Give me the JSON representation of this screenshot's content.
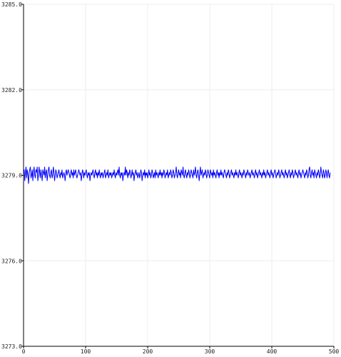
{
  "chart_data": {
    "type": "line",
    "x_start": 0,
    "x_step": 1,
    "xlim": [
      0,
      500
    ],
    "ylim": [
      3273.0,
      3285.0
    ],
    "x_ticks": [
      0,
      100,
      200,
      300,
      400,
      500
    ],
    "x_tick_labels": [
      "0",
      "100",
      "200",
      "300",
      "400",
      "500"
    ],
    "y_ticks": [
      3273.0,
      3276.0,
      3279.0,
      3282.0,
      3285.0
    ],
    "y_tick_labels": [
      "3273.0",
      "3276.0",
      "3279.0",
      "3282.0",
      "3285.0"
    ],
    "grid": true,
    "line_color": "#0000ff",
    "series": [
      {
        "values": [
          3279.1,
          3279.2,
          3278.8,
          3279.1,
          3279.3,
          3278.9,
          3279.2,
          3279.0,
          3278.7,
          3279.1,
          3279.2,
          3279.3,
          3278.9,
          3279.0,
          3279.2,
          3278.8,
          3279.1,
          3279.3,
          3279.0,
          3278.9,
          3279.2,
          3279.1,
          3279.3,
          3278.8,
          3279.0,
          3279.3,
          3279.1,
          3278.9,
          3279.2,
          3279.0,
          3278.8,
          3279.2,
          3279.1,
          3279.0,
          3279.3,
          3278.9,
          3279.1,
          3279.2,
          3278.8,
          3279.0,
          3279.2,
          3279.3,
          3279.0,
          3278.9,
          3279.1,
          3279.2,
          3278.9,
          3279.0,
          3279.3,
          3279.1,
          3278.8,
          3279.0,
          3279.2,
          3279.1,
          3278.9,
          3279.0,
          3279.1,
          3279.2,
          3279.0,
          3278.9,
          3279.1,
          3279.0,
          3279.2,
          3278.9,
          3279.0,
          3279.1,
          3279.0,
          3278.8,
          3279.1,
          3279.2,
          3279.0,
          3279.1,
          3279.2,
          3279.1,
          3279.0,
          3278.9,
          3279.1,
          3279.2,
          3279.0,
          3279.1,
          3278.9,
          3279.2,
          3279.0,
          3279.1,
          3279.2,
          3279.0,
          3278.9,
          3279.0,
          3279.1,
          3279.2,
          3279.1,
          3279.0,
          3279.1,
          3278.8,
          3279.0,
          3279.2,
          3279.1,
          3278.9,
          3279.1,
          3279.0,
          3279.1,
          3279.2,
          3279.0,
          3278.9,
          3279.1,
          3279.0,
          3279.1,
          3278.8,
          3279.0,
          3279.1,
          3279.0,
          3279.1,
          3279.2,
          3279.0,
          3278.9,
          3279.1,
          3279.2,
          3279.0,
          3279.1,
          3278.9,
          3279.1,
          3279.0,
          3279.2,
          3279.0,
          3278.9,
          3279.1,
          3279.0,
          3279.1,
          3278.9,
          3279.0,
          3279.1,
          3279.2,
          3278.9,
          3279.0,
          3279.1,
          3279.0,
          3279.2,
          3278.9,
          3279.0,
          3279.1,
          3279.0,
          3279.1,
          3278.9,
          3279.0,
          3279.1,
          3279.0,
          3279.2,
          3279.0,
          3278.9,
          3279.1,
          3279.0,
          3279.1,
          3279.2,
          3279.0,
          3279.3,
          3279.0,
          3278.9,
          3279.1,
          3279.0,
          3279.1,
          3278.8,
          3279.0,
          3279.1,
          3279.0,
          3279.3,
          3279.0,
          3279.2,
          3279.1,
          3278.9,
          3279.1,
          3279.0,
          3279.2,
          3279.1,
          3278.9,
          3279.0,
          3279.2,
          3279.0,
          3279.1,
          3278.8,
          3279.0,
          3279.1,
          3279.2,
          3279.0,
          3279.1,
          3278.9,
          3279.0,
          3279.1,
          3278.9,
          3279.0,
          3279.2,
          3279.1,
          3278.8,
          3279.0,
          3279.1,
          3279.0,
          3279.2,
          3278.9,
          3279.1,
          3279.0,
          3279.1,
          3278.9,
          3279.0,
          3279.2,
          3279.0,
          3279.1,
          3278.9,
          3279.0,
          3279.2,
          3279.1,
          3278.9,
          3279.0,
          3279.1,
          3278.9,
          3279.2,
          3279.0,
          3279.1,
          3279.0,
          3278.9,
          3279.1,
          3279.0,
          3279.2,
          3279.0,
          3279.1,
          3278.9,
          3279.1,
          3279.0,
          3279.2,
          3279.1,
          3278.9,
          3279.0,
          3279.1,
          3279.0,
          3279.2,
          3278.9,
          3279.0,
          3279.1,
          3279.0,
          3279.2,
          3279.1,
          3278.9,
          3279.0,
          3279.2,
          3279.1,
          3278.9,
          3279.0,
          3279.1,
          3279.3,
          3279.0,
          3278.9,
          3279.1,
          3279.2,
          3279.0,
          3279.1,
          3278.9,
          3279.2,
          3279.1,
          3279.0,
          3279.3,
          3279.0,
          3278.9,
          3279.1,
          3279.2,
          3279.0,
          3278.9,
          3279.1,
          3279.0,
          3279.2,
          3279.1,
          3278.9,
          3279.0,
          3279.2,
          3279.1,
          3279.0,
          3278.9,
          3279.2,
          3279.0,
          3279.1,
          3279.3,
          3279.0,
          3278.9,
          3279.1,
          3279.2,
          3279.0,
          3278.8,
          3279.1,
          3279.3,
          3279.0,
          3279.1,
          3279.2,
          3278.9,
          3279.0,
          3279.1,
          3279.0,
          3279.2,
          3279.1,
          3278.9,
          3279.0,
          3279.2,
          3279.1,
          3279.0,
          3278.9,
          3279.2,
          3279.1,
          3279.0,
          3279.1,
          3278.9,
          3279.2,
          3279.0,
          3279.1,
          3279.0,
          3278.9,
          3279.1,
          3279.2,
          3279.0,
          3279.1,
          3278.9,
          3279.1,
          3279.0,
          3279.2,
          3279.0,
          3279.1,
          3279.0,
          3278.9,
          3279.1,
          3279.2,
          3279.1,
          3279.0,
          3278.9,
          3279.1,
          3279.0,
          3279.2,
          3279.1,
          3278.9,
          3279.0,
          3279.1,
          3279.2,
          3279.0,
          3279.1,
          3279.0,
          3278.9,
          3279.1,
          3279.0,
          3279.2,
          3279.0,
          3279.1,
          3279.0,
          3278.9,
          3279.1,
          3279.2,
          3279.0,
          3279.1,
          3279.0,
          3278.9,
          3279.1,
          3279.0,
          3279.2,
          3279.1,
          3279.0,
          3278.9,
          3279.1,
          3279.0,
          3279.2,
          3279.1,
          3279.0,
          3279.1,
          3278.9,
          3279.0,
          3279.1,
          3279.2,
          3279.0,
          3279.1,
          3279.0,
          3278.9,
          3279.1,
          3279.2,
          3279.0,
          3279.1,
          3278.9,
          3279.0,
          3279.1,
          3279.2,
          3279.0,
          3279.1,
          3279.0,
          3278.9,
          3279.1,
          3279.0,
          3279.2,
          3279.0,
          3279.1,
          3278.9,
          3279.0,
          3279.1,
          3279.2,
          3279.0,
          3279.1,
          3279.0,
          3278.9,
          3279.1,
          3279.2,
          3279.0,
          3279.1,
          3278.9,
          3279.0,
          3279.1,
          3279.2,
          3279.1,
          3278.9,
          3279.0,
          3279.1,
          3279.0,
          3279.2,
          3279.1,
          3278.9,
          3279.0,
          3279.1,
          3279.2,
          3279.0,
          3279.1,
          3279.0,
          3278.9,
          3279.1,
          3279.2,
          3279.0,
          3279.1,
          3278.9,
          3279.0,
          3279.1,
          3279.2,
          3279.0,
          3278.9,
          3279.1,
          3279.0,
          3279.2,
          3279.1,
          3278.9,
          3279.0,
          3279.1,
          3279.2,
          3279.0,
          3279.1,
          3279.0,
          3278.9,
          3279.1,
          3279.2,
          3279.0,
          3279.1,
          3278.9,
          3279.0,
          3279.1,
          3279.2,
          3279.1,
          3279.0,
          3278.9,
          3279.1,
          3279.0,
          3279.2,
          3279.1,
          3278.9,
          3279.0,
          3279.2,
          3279.3,
          3279.0,
          3278.9,
          3279.1,
          3279.2,
          3279.0,
          3279.1,
          3278.9,
          3279.2,
          3279.1,
          3279.0,
          3278.9,
          3279.1,
          3279.0,
          3279.2,
          3279.1,
          3278.9,
          3279.0,
          3279.3,
          3279.1,
          3279.0,
          3278.9,
          3279.2,
          3279.1,
          3278.9,
          3279.0,
          3279.2,
          3279.1,
          3278.9,
          3279.1,
          3279.2,
          3279.0,
          3278.9,
          3279.1
        ]
      }
    ]
  }
}
